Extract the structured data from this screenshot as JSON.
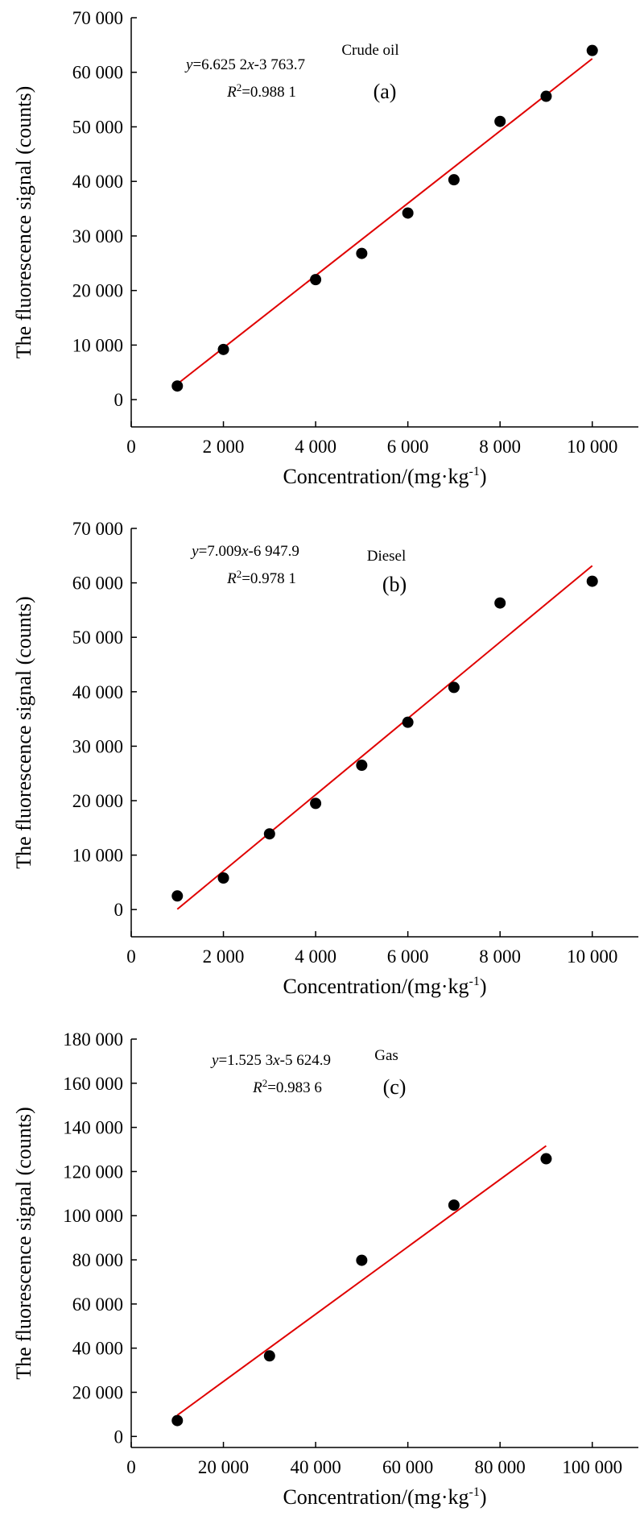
{
  "colors": {
    "points": "#000000",
    "fit_line": "#e00000",
    "axes": "#000000"
  },
  "chart_data": [
    {
      "type": "scatter",
      "panel_label": "(a)",
      "sample": "Crude oil",
      "equation": {
        "y": "y",
        "eq1": "=6.625 2",
        "x": "x",
        "eq2": "-3 763.7"
      },
      "r2": {
        "r": "R",
        "sup": "2",
        "rest": "=0.988 1"
      },
      "xlabel": {
        "main": "Concentration/(mg·kg",
        "sup": "-1",
        "close": ")"
      },
      "ylabel": "The fluorescence signal (counts)",
      "xlim": [
        0,
        11000
      ],
      "ylim": [
        -5000,
        70000
      ],
      "xticks": [
        0,
        2000,
        4000,
        6000,
        8000,
        10000
      ],
      "xtick_labels": [
        "0",
        "2 000",
        "4 000",
        "6 000",
        "8 000",
        "10 000"
      ],
      "yticks": [
        0,
        10000,
        20000,
        30000,
        40000,
        50000,
        60000,
        70000
      ],
      "ytick_labels": [
        "0",
        "10 000",
        "20 000",
        "30 000",
        "40 000",
        "50 000",
        "60 000",
        "70 000"
      ],
      "x": [
        1000,
        2000,
        4000,
        5000,
        6000,
        7000,
        8000,
        9000,
        10000
      ],
      "y": [
        2500,
        9200,
        22000,
        26800,
        34200,
        40300,
        51000,
        55600,
        64000
      ],
      "fit": {
        "slope": 6.6252,
        "intercept": -3763.7,
        "x_range": [
          1000,
          10000
        ]
      }
    },
    {
      "type": "scatter",
      "panel_label": "(b)",
      "sample": "Diesel",
      "equation": {
        "y": "y",
        "eq1": "=7.009",
        "x": "x",
        "eq2": "-6 947.9"
      },
      "r2": {
        "r": "R",
        "sup": "2",
        "rest": "=0.978 1"
      },
      "xlabel": {
        "main": "Concentration/(mg·kg",
        "sup": "-1",
        "close": ")"
      },
      "ylabel": "The fluorescence signal (counts)",
      "xlim": [
        0,
        11000
      ],
      "ylim": [
        -5000,
        70000
      ],
      "xticks": [
        0,
        2000,
        4000,
        6000,
        8000,
        10000
      ],
      "xtick_labels": [
        "0",
        "2 000",
        "4 000",
        "6 000",
        "8 000",
        "10 000"
      ],
      "yticks": [
        0,
        10000,
        20000,
        30000,
        40000,
        50000,
        60000,
        70000
      ],
      "ytick_labels": [
        "0",
        "10 000",
        "20 000",
        "30 000",
        "40 000",
        "50 000",
        "60 000",
        "70 000"
      ],
      "x": [
        1000,
        2000,
        3000,
        4000,
        5000,
        6000,
        7000,
        8000,
        10000
      ],
      "y": [
        2500,
        5800,
        13900,
        19500,
        26500,
        34400,
        40800,
        56300,
        60300
      ],
      "fit": {
        "slope": 7.009,
        "intercept": -6947.9,
        "x_range": [
          1000,
          10000
        ]
      }
    },
    {
      "type": "scatter",
      "panel_label": "(c)",
      "sample": "Gas",
      "equation": {
        "y": "y",
        "eq1": "=1.525 3",
        "x": "x",
        "eq2": "-5 624.9"
      },
      "r2": {
        "r": "R",
        "sup": "2",
        "rest": "=0.983 6"
      },
      "xlabel": {
        "main": "Concentration/(mg·kg",
        "sup": "-1",
        "close": ")"
      },
      "ylabel": "The fluorescence signal (counts)",
      "xlim": [
        0,
        110000
      ],
      "ylim": [
        -5000,
        180000
      ],
      "xticks": [
        0,
        20000,
        40000,
        60000,
        80000,
        100000
      ],
      "xtick_labels": [
        "0",
        "20 000",
        "40 000",
        "60 000",
        "80 000",
        "100 000"
      ],
      "yticks": [
        0,
        20000,
        40000,
        60000,
        80000,
        100000,
        120000,
        140000,
        160000,
        180000
      ],
      "ytick_labels": [
        "0",
        "20 000",
        "40 000",
        "60 000",
        "80 000",
        "100 000",
        "120 000",
        "140 000",
        "160 000",
        "180 000"
      ],
      "x": [
        10000,
        30000,
        50000,
        70000,
        90000
      ],
      "y": [
        7200,
        36500,
        79800,
        104800,
        125800
      ],
      "fit": {
        "slope": 1.5253,
        "intercept": -5624.9,
        "x_range": [
          10000,
          90000
        ]
      }
    }
  ]
}
